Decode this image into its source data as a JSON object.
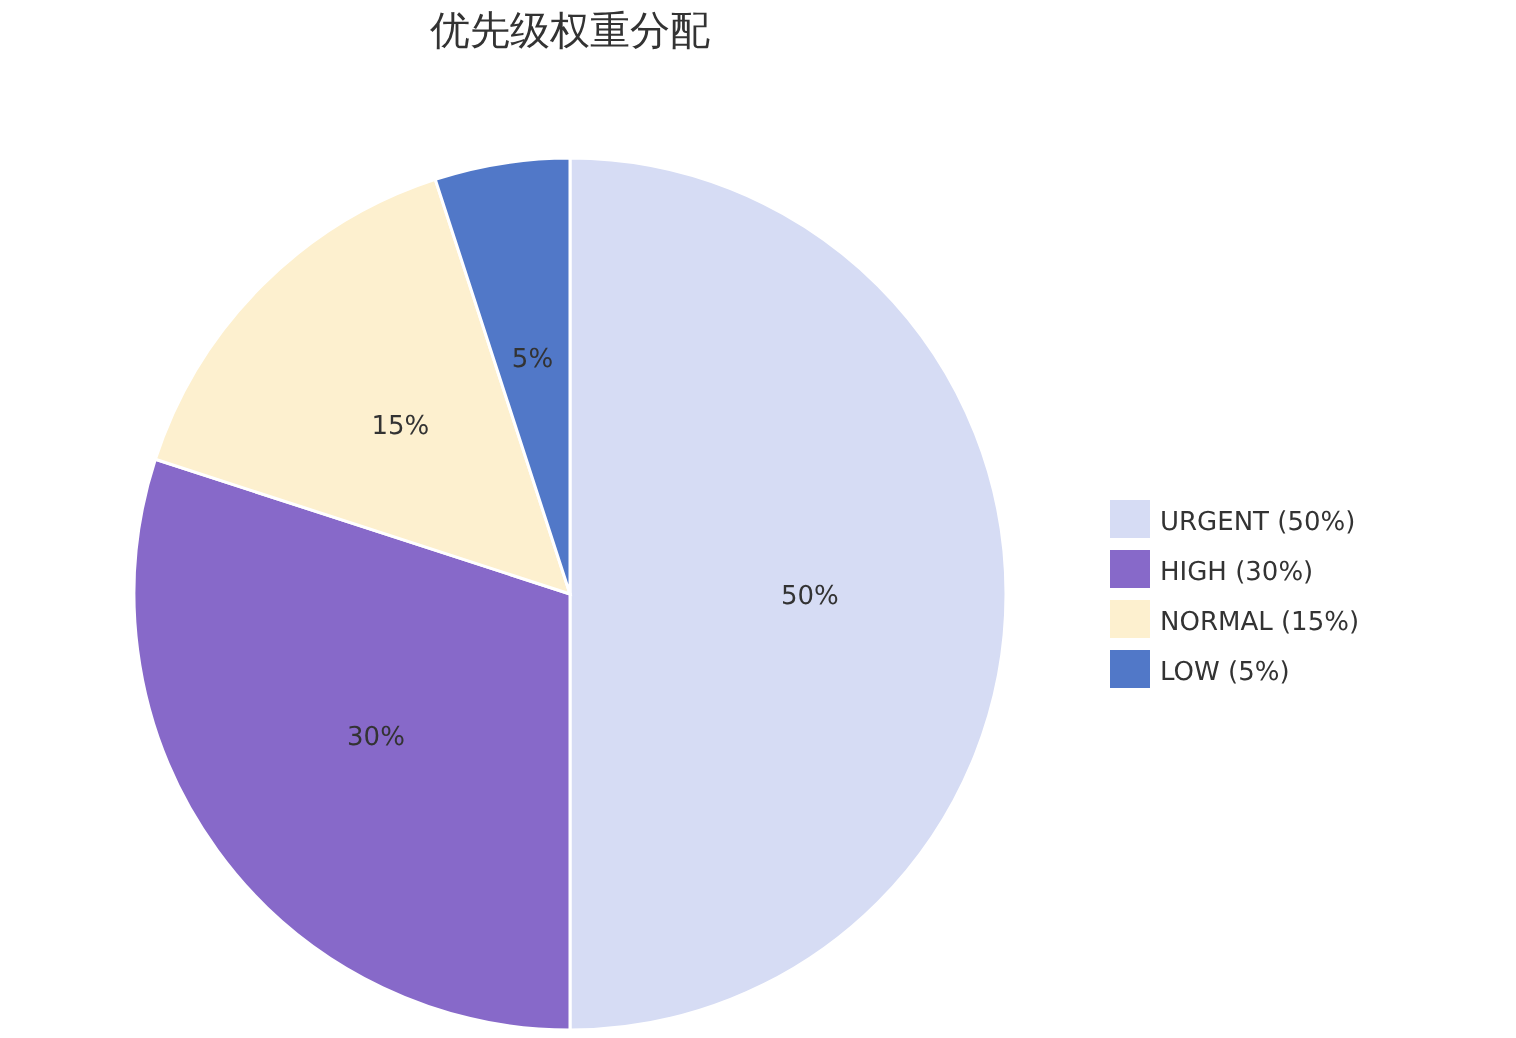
{
  "chart_data": {
    "type": "pie",
    "title": "优先级权重分配",
    "categories": [
      "URGENT (50%)",
      "HIGH (30%)",
      "NORMAL (15%)",
      "LOW (5%)"
    ],
    "values": [
      50,
      30,
      15,
      5
    ],
    "colors": [
      "#d6dcf4",
      "#8769c9",
      "#fdf0cf",
      "#5178c8"
    ],
    "value_labels": [
      "50%",
      "30%",
      "15%",
      "5%"
    ],
    "legend": "right"
  }
}
